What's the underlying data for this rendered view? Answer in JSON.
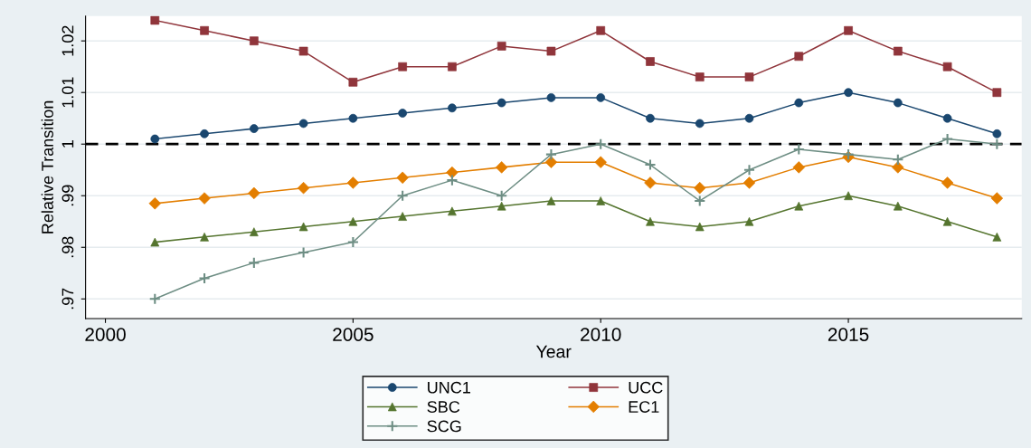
{
  "chart_data": {
    "type": "line",
    "xlabel": "Year",
    "ylabel": "Relative Transition",
    "x": [
      2001,
      2002,
      2003,
      2004,
      2005,
      2006,
      2007,
      2008,
      2009,
      2010,
      2011,
      2012,
      2013,
      2014,
      2015,
      2016,
      2017,
      2018
    ],
    "series": [
      {
        "name": "UNC1",
        "color": "#1a476f",
        "marker": "circle",
        "values": [
          1.001,
          1.002,
          1.003,
          1.004,
          1.005,
          1.006,
          1.007,
          1.008,
          1.009,
          1.009,
          1.005,
          1.004,
          1.005,
          1.008,
          1.01,
          1.008,
          1.005,
          1.002
        ]
      },
      {
        "name": "UCC",
        "color": "#90353b",
        "marker": "square",
        "values": [
          1.024,
          1.022,
          1.02,
          1.018,
          1.012,
          1.015,
          1.015,
          1.019,
          1.018,
          1.022,
          1.016,
          1.013,
          1.013,
          1.017,
          1.022,
          1.018,
          1.015,
          1.01
        ]
      },
      {
        "name": "SBC",
        "color": "#55752f",
        "marker": "triangle",
        "values": [
          0.981,
          0.982,
          0.983,
          0.984,
          0.985,
          0.986,
          0.987,
          0.988,
          0.989,
          0.989,
          0.985,
          0.984,
          0.985,
          0.988,
          0.99,
          0.988,
          0.985,
          0.982
        ]
      },
      {
        "name": "EC1",
        "color": "#e37e00",
        "marker": "diamond",
        "values": [
          0.9885,
          0.9895,
          0.9905,
          0.9915,
          0.9925,
          0.9935,
          0.9945,
          0.9955,
          0.9965,
          0.9965,
          0.9925,
          0.9915,
          0.9925,
          0.9955,
          0.9975,
          0.9955,
          0.9925,
          0.9895
        ]
      },
      {
        "name": "SCG",
        "color": "#6e8e84",
        "marker": "cross",
        "values": [
          0.97,
          0.974,
          0.977,
          0.979,
          0.981,
          0.99,
          0.993,
          0.99,
          0.998,
          1.0,
          0.996,
          0.989,
          0.995,
          0.999,
          0.998,
          0.997,
          1.001,
          1.0
        ]
      }
    ],
    "xlim": [
      1999.6,
      2018.5
    ],
    "xticks": [
      2000,
      2005,
      2010,
      2015
    ],
    "ylim": [
      0.9662,
      1.0248
    ],
    "yticks": [
      {
        "value": 0.97,
        "label": ".97"
      },
      {
        "value": 0.98,
        "label": ".98"
      },
      {
        "value": 0.99,
        "label": ".99"
      },
      1,
      1.01,
      1.02
    ],
    "ref_lines": [
      {
        "axis": "y",
        "value": 1,
        "color": "#000000",
        "line_style": "dashed"
      }
    ],
    "grid": "y",
    "legend": "bottom",
    "line_style": "solid"
  }
}
